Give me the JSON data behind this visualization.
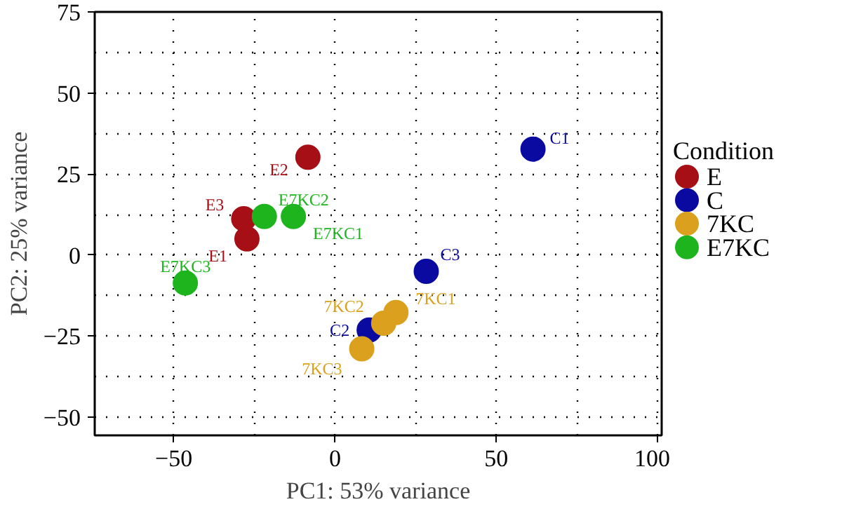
{
  "chart_data": {
    "type": "scatter",
    "xlabel": "PC1: 53% variance",
    "ylabel": "PC2: 25% variance",
    "legend_title": "Condition",
    "legend": "right",
    "grid": true,
    "marker": "circle",
    "xlim": [
      -74.5,
      101.3
    ],
    "ylim": [
      -55.6,
      75
    ],
    "xticks": [
      -50,
      0,
      50,
      100
    ],
    "yticks": [
      -50,
      -25,
      0,
      25,
      50,
      75
    ],
    "series": [
      {
        "name": "E",
        "color": "#a50f15",
        "x": [
          -27.3,
          -8.4,
          -28.3
        ],
        "values": [
          5.0,
          30.2,
          11.2
        ],
        "value_labels": [
          "E1",
          "E2",
          "E3"
        ]
      },
      {
        "name": "C",
        "color": "#0a0aa0",
        "x": [
          61.4,
          10.6,
          28.3
        ],
        "values": [
          32.7,
          -23.1,
          -5.0
        ],
        "value_labels": [
          "C1",
          "C2",
          "C3"
        ]
      },
      {
        "name": "7KC",
        "color": "#daa01e",
        "x": [
          18.9,
          15.1,
          8.3
        ],
        "values": [
          -17.7,
          -21.0,
          -28.9
        ],
        "value_labels": [
          "7KC1",
          "7KC2",
          "7KC3"
        ]
      },
      {
        "name": "E7KC",
        "color": "#1eb41e",
        "x": [
          -12.9,
          -21.9,
          -46.4
        ],
        "values": [
          11.9,
          11.9,
          -8.6
        ],
        "value_labels": [
          "E7KC1",
          "E7KC2",
          "E7KC3"
        ]
      }
    ]
  }
}
